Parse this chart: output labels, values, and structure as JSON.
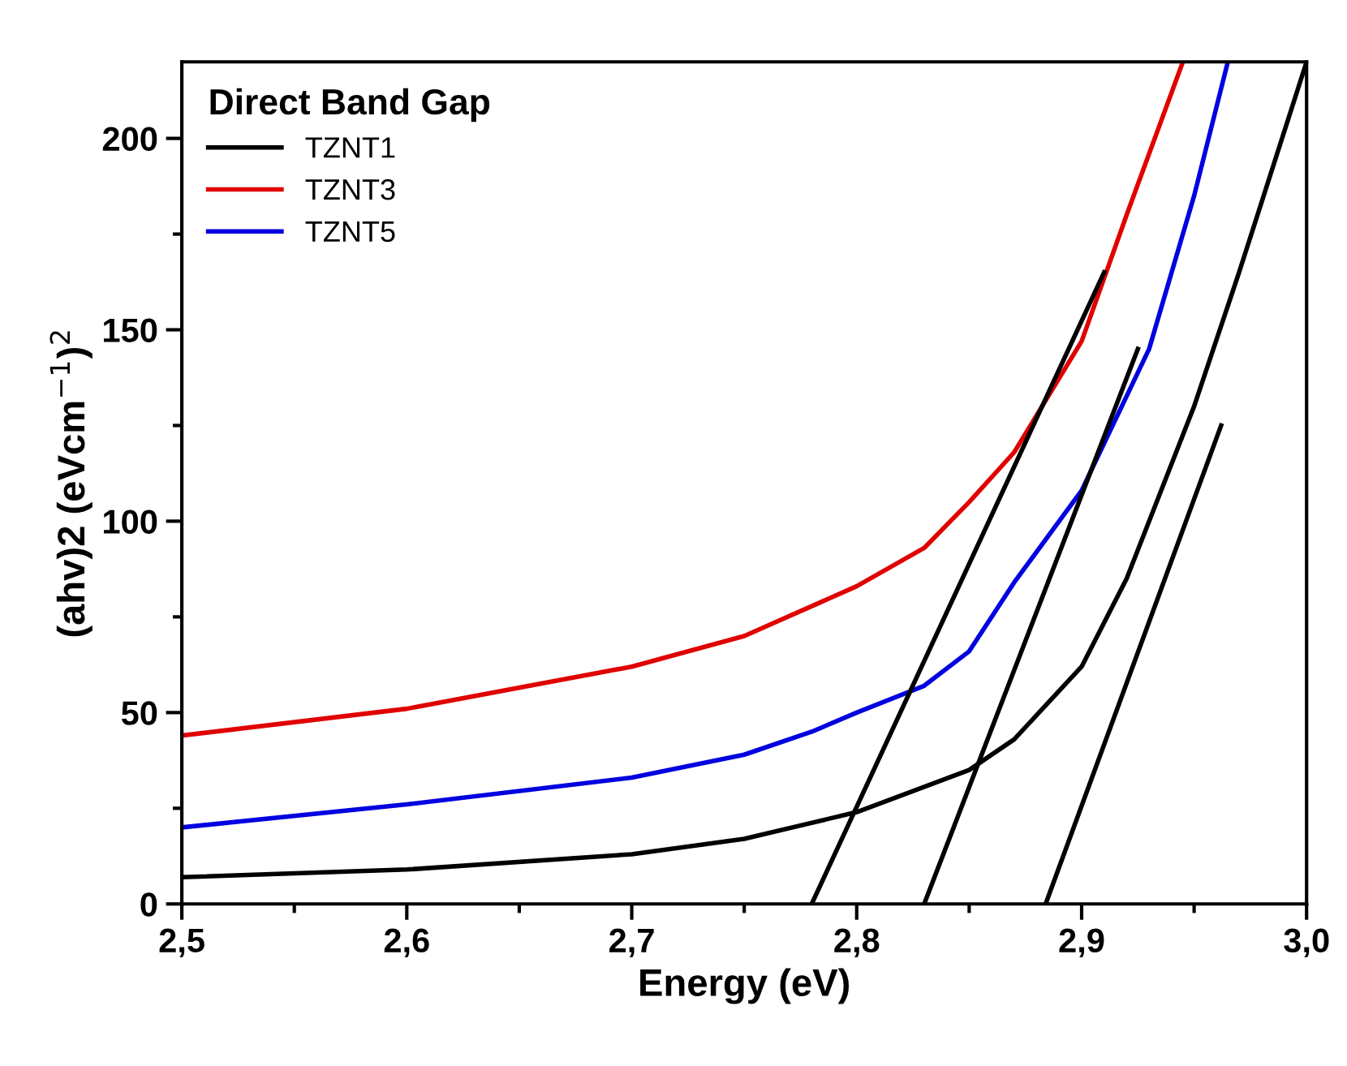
{
  "chart_data": {
    "type": "line",
    "xlabel": "Energy (eV)",
    "ylabel": "(ahv)2 (eVcm$^{−1}$)$^{2}$",
    "legend_title": "Direct Band Gap",
    "legend": "top left",
    "grid": false,
    "marker": "none",
    "line_style": "solid",
    "xlim": [
      2.5,
      3.0
    ],
    "ylim": [
      0,
      220
    ],
    "xticks": [
      {
        "value": 2.5,
        "label": "2,5"
      },
      {
        "value": 2.6,
        "label": "2,6"
      },
      {
        "value": 2.7,
        "label": "2,7"
      },
      {
        "value": 2.8,
        "label": "2,8"
      },
      {
        "value": 2.9,
        "label": "2,9"
      },
      {
        "value": 3.0,
        "label": "3,0"
      }
    ],
    "yticks": [
      0,
      50,
      100,
      150,
      200
    ],
    "series": [
      {
        "name": "TZNT1",
        "color": "#000000",
        "x": [
          2.5,
          2.6,
          2.7,
          2.75,
          2.8,
          2.85,
          2.87,
          2.9,
          2.92,
          2.95,
          2.97,
          3.0
        ],
        "values": [
          7,
          9,
          13,
          17,
          24,
          35,
          43,
          62,
          85,
          130,
          165,
          220
        ]
      },
      {
        "name": "TZNT3",
        "color": "#e00000",
        "x": [
          2.5,
          2.6,
          2.7,
          2.75,
          2.8,
          2.83,
          2.85,
          2.87,
          2.9,
          2.92,
          2.945
        ],
        "values": [
          44,
          51,
          62,
          70,
          83,
          93,
          105,
          118,
          147,
          180,
          220
        ]
      },
      {
        "name": "TZNT5",
        "color": "#0000e0",
        "x": [
          2.5,
          2.6,
          2.7,
          2.75,
          2.78,
          2.8,
          2.83,
          2.85,
          2.87,
          2.9,
          2.93,
          2.95,
          2.965
        ],
        "values": [
          20,
          26,
          33,
          39,
          45,
          50,
          57,
          66,
          84,
          108,
          145,
          185,
          220
        ]
      },
      {
        "type": "line",
        "color": "#000000",
        "x": [
          2.78,
          2.91
        ],
        "values": [
          0,
          165
        ]
      },
      {
        "type": "line",
        "color": "#000000",
        "x": [
          2.83,
          2.925
        ],
        "values": [
          0,
          145
        ]
      },
      {
        "type": "line",
        "color": "#000000",
        "x": [
          2.884,
          2.962
        ],
        "values": [
          0,
          125
        ]
      }
    ]
  }
}
